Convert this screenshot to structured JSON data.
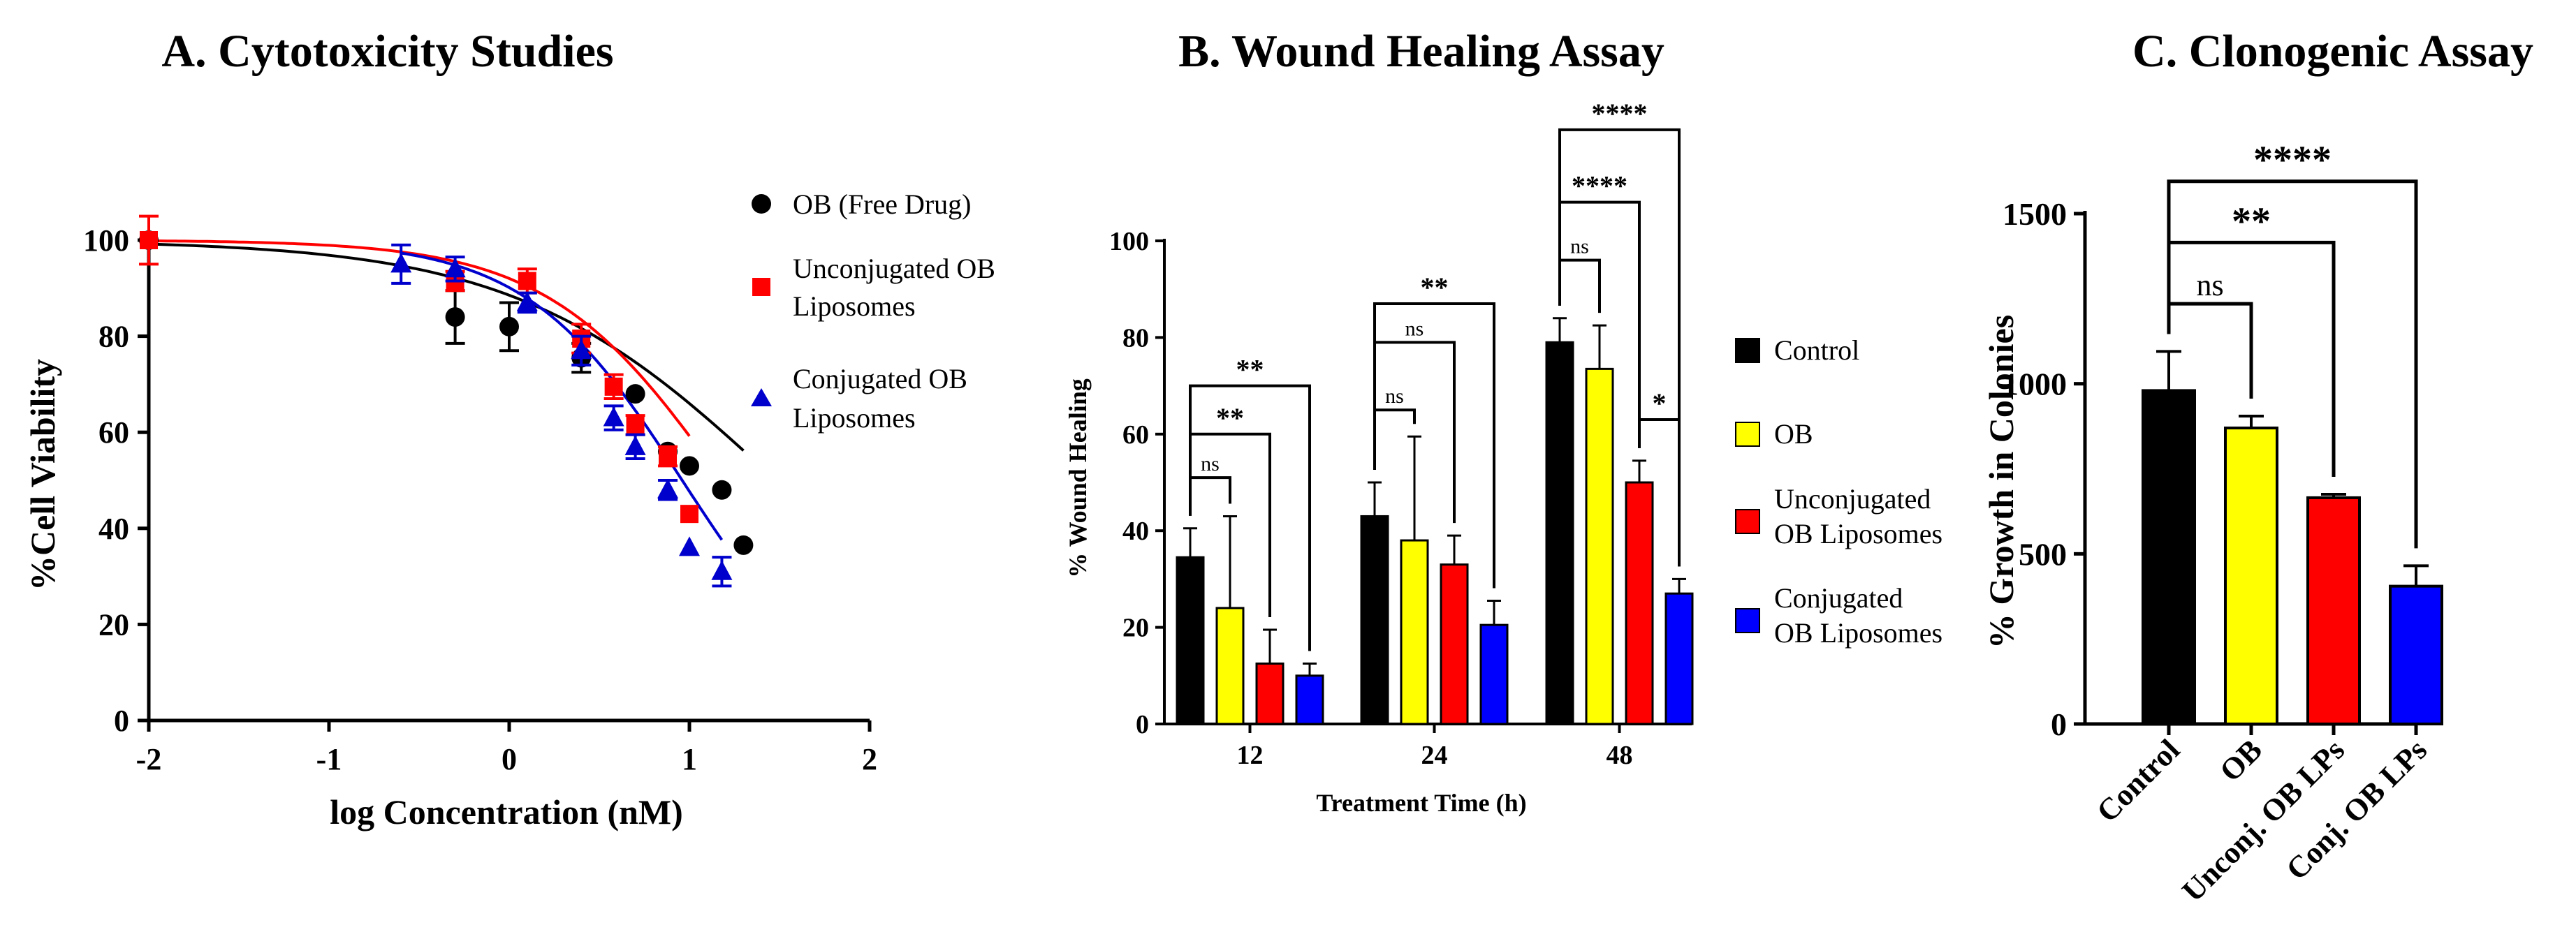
{
  "chart_data": [
    {
      "type": "scatter",
      "title": "A. Cytotoxicity Studies",
      "xlabel": "log Concentration (nM)",
      "ylabel": "%Cell Viability",
      "xlim": [
        -2,
        2
      ],
      "ylim": [
        0,
        100
      ],
      "xticks": [
        -2,
        -1,
        0,
        1,
        2
      ],
      "yticks": [
        0,
        20,
        40,
        60,
        80,
        100
      ],
      "grid": false,
      "legend": "right",
      "series": [
        {
          "name": "OB (Free Drug)",
          "marker": "circle",
          "color": "#000000",
          "points": [
            {
              "x": -2.0,
              "y": 100,
              "err": 0
            },
            {
              "x": -0.3,
              "y": 84,
              "err": 5.5
            },
            {
              "x": 0.0,
              "y": 82,
              "err": 5
            },
            {
              "x": 0.4,
              "y": 75.5,
              "err": 3
            },
            {
              "x": 0.7,
              "y": 68,
              "err": 0
            },
            {
              "x": 0.88,
              "y": 56,
              "err": 0
            },
            {
              "x": 1.0,
              "y": 53,
              "err": 0
            },
            {
              "x": 1.18,
              "y": 48,
              "err": 0
            },
            {
              "x": 1.3,
              "y": 36.5,
              "err": 0
            }
          ],
          "fit": {
            "top": 100,
            "bottom": 0,
            "logEC50": 1.48,
            "hill": 0.6
          }
        },
        {
          "name": "Unconjugated OB Liposomes",
          "marker": "square",
          "color": "#ff0000",
          "points": [
            {
              "x": -2.0,
              "y": 100,
              "err": 5
            },
            {
              "x": -0.3,
              "y": 91.5,
              "err": 2
            },
            {
              "x": 0.1,
              "y": 91.5,
              "err": 2.5
            },
            {
              "x": 0.4,
              "y": 79.5,
              "err": 3
            },
            {
              "x": 0.58,
              "y": 69.5,
              "err": 2.5
            },
            {
              "x": 0.7,
              "y": 61.5,
              "err": 2
            },
            {
              "x": 0.88,
              "y": 55,
              "err": 2
            },
            {
              "x": 1.0,
              "y": 43,
              "err": 0
            }
          ],
          "fit": {
            "top": 100,
            "bottom": 0,
            "logEC50": 1.18,
            "hill": 0.9
          }
        },
        {
          "name": "Conjugated OB Liposomes",
          "marker": "triangle",
          "color": "#0000cd",
          "points": [
            {
              "x": -0.6,
              "y": 95,
              "err": 4
            },
            {
              "x": -0.3,
              "y": 94,
              "err": 2.5
            },
            {
              "x": 0.1,
              "y": 87,
              "err": 2
            },
            {
              "x": 0.4,
              "y": 77,
              "err": 3
            },
            {
              "x": 0.58,
              "y": 63,
              "err": 2.5
            },
            {
              "x": 0.7,
              "y": 57,
              "err": 2.5
            },
            {
              "x": 0.88,
              "y": 48,
              "err": 2
            },
            {
              "x": 1.0,
              "y": 36,
              "err": 0
            },
            {
              "x": 1.18,
              "y": 31,
              "err": 3
            }
          ],
          "fit": {
            "top": 100,
            "bottom": 0,
            "logEC50": 0.96,
            "hill": 1.0
          }
        }
      ]
    },
    {
      "type": "bar",
      "title": "B. Wound Healing Assay",
      "xlabel": "Treatment Time (h)",
      "ylabel": "% Wound Healing",
      "ylim": [
        0,
        100
      ],
      "yticks": [
        0,
        20,
        40,
        60,
        80,
        100
      ],
      "grid": false,
      "legend": "right",
      "categories": [
        "12",
        "24",
        "48"
      ],
      "series": [
        {
          "name": "Control",
          "color": "#000000",
          "values": [
            34.5,
            43,
            79
          ],
          "errors": [
            6,
            7,
            5
          ]
        },
        {
          "name": "OB",
          "color": "#ffff00",
          "values": [
            24,
            38,
            73.5
          ],
          "errors": [
            19,
            21.5,
            9
          ]
        },
        {
          "name": "Unconjugated OB Liposomes",
          "color": "#ff0000",
          "values": [
            12.5,
            33,
            50
          ],
          "errors": [
            7,
            6,
            4.5
          ]
        },
        {
          "name": "Conjugated OB Liposomes",
          "color": "#0000ff",
          "values": [
            10,
            20.5,
            27
          ],
          "errors": [
            2.5,
            5,
            3
          ]
        }
      ],
      "annotations": [
        {
          "group": 0,
          "from": 0,
          "to": 1,
          "label": "ns",
          "y": 51
        },
        {
          "group": 0,
          "from": 0,
          "to": 2,
          "label": "**",
          "y": 60
        },
        {
          "group": 0,
          "from": 0,
          "to": 3,
          "label": "**",
          "y": 70
        },
        {
          "group": 1,
          "from": 0,
          "to": 1,
          "label": "ns",
          "y": 65
        },
        {
          "group": 1,
          "from": 0,
          "to": 2,
          "label": "ns",
          "y": 79
        },
        {
          "group": 1,
          "from": 0,
          "to": 3,
          "label": "**",
          "y": 87
        },
        {
          "group": 2,
          "from": 0,
          "to": 1,
          "label": "ns",
          "y": 96
        },
        {
          "group": 2,
          "from": 0,
          "to": 2,
          "label": "****",
          "y": 108
        },
        {
          "group": 2,
          "from": 0,
          "to": 3,
          "label": "****",
          "y": 123
        },
        {
          "group": 2,
          "from": 2,
          "to": 3,
          "label": "*",
          "y": 63
        }
      ]
    },
    {
      "type": "bar",
      "title": "C. Clonogenic Assay",
      "xlabel": "",
      "ylabel": "% Growth in Colonies",
      "ylim": [
        0,
        1500
      ],
      "yticks": [
        0,
        500,
        1000,
        1500
      ],
      "grid": false,
      "categories": [
        "Control",
        "OB",
        "Unconj. OB LPs",
        "Conj. OB LPs"
      ],
      "colors": [
        "#000000",
        "#ffff00",
        "#ff0000",
        "#0000ff"
      ],
      "values": [
        980,
        870,
        665,
        405
      ],
      "errors": [
        115,
        35,
        10,
        60
      ],
      "annotations": [
        {
          "from": 0,
          "to": 1,
          "label": "ns",
          "y": 1235
        },
        {
          "from": 0,
          "to": 2,
          "label": "**",
          "y": 1415
        },
        {
          "from": 0,
          "to": 3,
          "label": "****",
          "y": 1595
        }
      ]
    }
  ]
}
